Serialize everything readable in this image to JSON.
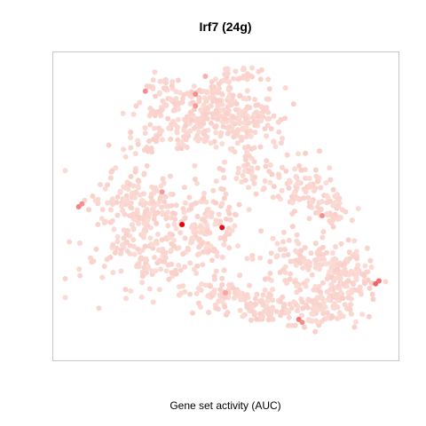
{
  "chart_data": {
    "type": "scatter",
    "title": "Irf7 (24g)",
    "xlabel": "Gene set activity (AUC)",
    "ylabel": "",
    "axes_shown": false,
    "grid": false,
    "xlim": [
      0,
      100
    ],
    "ylim": [
      0,
      100
    ],
    "colors": {
      "low": "#fbdcd5",
      "high": "#e8000b",
      "frame": "#c8c8c8"
    },
    "background_regions": [
      {
        "cx": 29,
        "cy": 66,
        "rx": 20,
        "ry": 13,
        "weight": 180
      },
      {
        "cx": 22,
        "cy": 48,
        "rx": 12,
        "ry": 12,
        "weight": 150
      },
      {
        "cx": 44,
        "cy": 56,
        "rx": 10,
        "ry": 12,
        "weight": 110
      },
      {
        "cx": 48,
        "cy": 80,
        "rx": 10,
        "ry": 6,
        "weight": 60
      },
      {
        "cx": 62,
        "cy": 84,
        "rx": 8,
        "ry": 6,
        "weight": 70
      },
      {
        "cx": 79,
        "cy": 82,
        "rx": 12,
        "ry": 9,
        "weight": 130
      },
      {
        "cx": 76,
        "cy": 68,
        "rx": 14,
        "ry": 7,
        "weight": 100
      },
      {
        "cx": 87,
        "cy": 74,
        "rx": 8,
        "ry": 8,
        "weight": 70
      },
      {
        "cx": 73,
        "cy": 43,
        "rx": 9,
        "ry": 9,
        "weight": 80
      },
      {
        "cx": 83,
        "cy": 51,
        "rx": 6,
        "ry": 6,
        "weight": 40
      },
      {
        "cx": 58,
        "cy": 40,
        "rx": 6,
        "ry": 7,
        "weight": 40
      },
      {
        "cx": 38,
        "cy": 24,
        "rx": 14,
        "ry": 7,
        "weight": 120
      },
      {
        "cx": 48,
        "cy": 15,
        "rx": 13,
        "ry": 9,
        "weight": 150
      },
      {
        "cx": 58,
        "cy": 22,
        "rx": 8,
        "ry": 8,
        "weight": 80
      },
      {
        "cx": 32,
        "cy": 12,
        "rx": 6,
        "ry": 7,
        "weight": 40
      },
      {
        "cx": 55,
        "cy": 5,
        "rx": 6,
        "ry": 3,
        "weight": 25
      }
    ],
    "highlighted_points": [
      {
        "x": 37,
        "y": 56,
        "v": 1.0
      },
      {
        "x": 49,
        "y": 57,
        "v": 0.95
      },
      {
        "x": 95,
        "y": 76,
        "v": 0.55
      },
      {
        "x": 96,
        "y": 75,
        "v": 0.5
      },
      {
        "x": 72,
        "y": 88,
        "v": 0.45
      },
      {
        "x": 73,
        "y": 89,
        "v": 0.35
      },
      {
        "x": 6,
        "y": 50,
        "v": 0.4
      },
      {
        "x": 7,
        "y": 49,
        "v": 0.35
      },
      {
        "x": 79,
        "y": 53,
        "v": 0.35
      },
      {
        "x": 31,
        "y": 45,
        "v": 0.3
      },
      {
        "x": 26,
        "y": 11,
        "v": 0.35
      },
      {
        "x": 41,
        "y": 12,
        "v": 0.35
      },
      {
        "x": 41,
        "y": 16,
        "v": 0.3
      },
      {
        "x": 50,
        "y": 79,
        "v": 0.25
      },
      {
        "x": 44,
        "y": 6,
        "v": 0.2
      }
    ]
  }
}
